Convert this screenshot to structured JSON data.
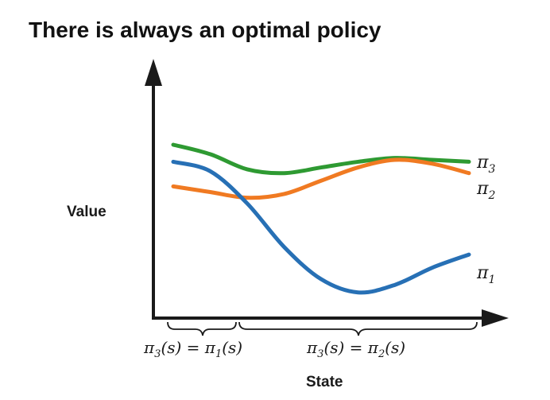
{
  "title": "There is always an optimal policy",
  "chart_data": {
    "type": "line",
    "xlabel": "State",
    "ylabel": "Value",
    "x_ticks": false,
    "y_ticks": false,
    "grid": false,
    "series": [
      {
        "name": "π3",
        "color": "#2e9a32",
        "values": [
          [
            0.0,
            8.4
          ],
          [
            0.25,
            7.9
          ],
          [
            0.5,
            7.1
          ],
          [
            0.75,
            6.9
          ],
          [
            1.0,
            7.2
          ],
          [
            1.25,
            7.5
          ],
          [
            1.5,
            7.7
          ],
          [
            1.75,
            7.6
          ],
          [
            2.0,
            7.5
          ]
        ]
      },
      {
        "name": "π2",
        "color": "#f07a22",
        "values": [
          [
            0.0,
            6.2
          ],
          [
            0.25,
            5.9
          ],
          [
            0.5,
            5.6
          ],
          [
            0.75,
            5.8
          ],
          [
            1.0,
            6.5
          ],
          [
            1.25,
            7.2
          ],
          [
            1.5,
            7.6
          ],
          [
            1.75,
            7.4
          ],
          [
            2.0,
            6.9
          ]
        ]
      },
      {
        "name": "π1",
        "color": "#2770b5",
        "values": [
          [
            0.0,
            7.5
          ],
          [
            0.25,
            7.0
          ],
          [
            0.5,
            5.3
          ],
          [
            0.75,
            3.0
          ],
          [
            1.0,
            1.3
          ],
          [
            1.25,
            0.6
          ],
          [
            1.5,
            1.0
          ],
          [
            1.75,
            1.9
          ],
          [
            2.0,
            2.6
          ]
        ]
      }
    ],
    "region_annotations": [
      {
        "label_parts": [
          "π",
          "3",
          "(s) = π",
          "1",
          "(s)"
        ]
      },
      {
        "label_parts": [
          "π",
          "3",
          "(s) = π",
          "2",
          "(s)"
        ]
      }
    ]
  }
}
